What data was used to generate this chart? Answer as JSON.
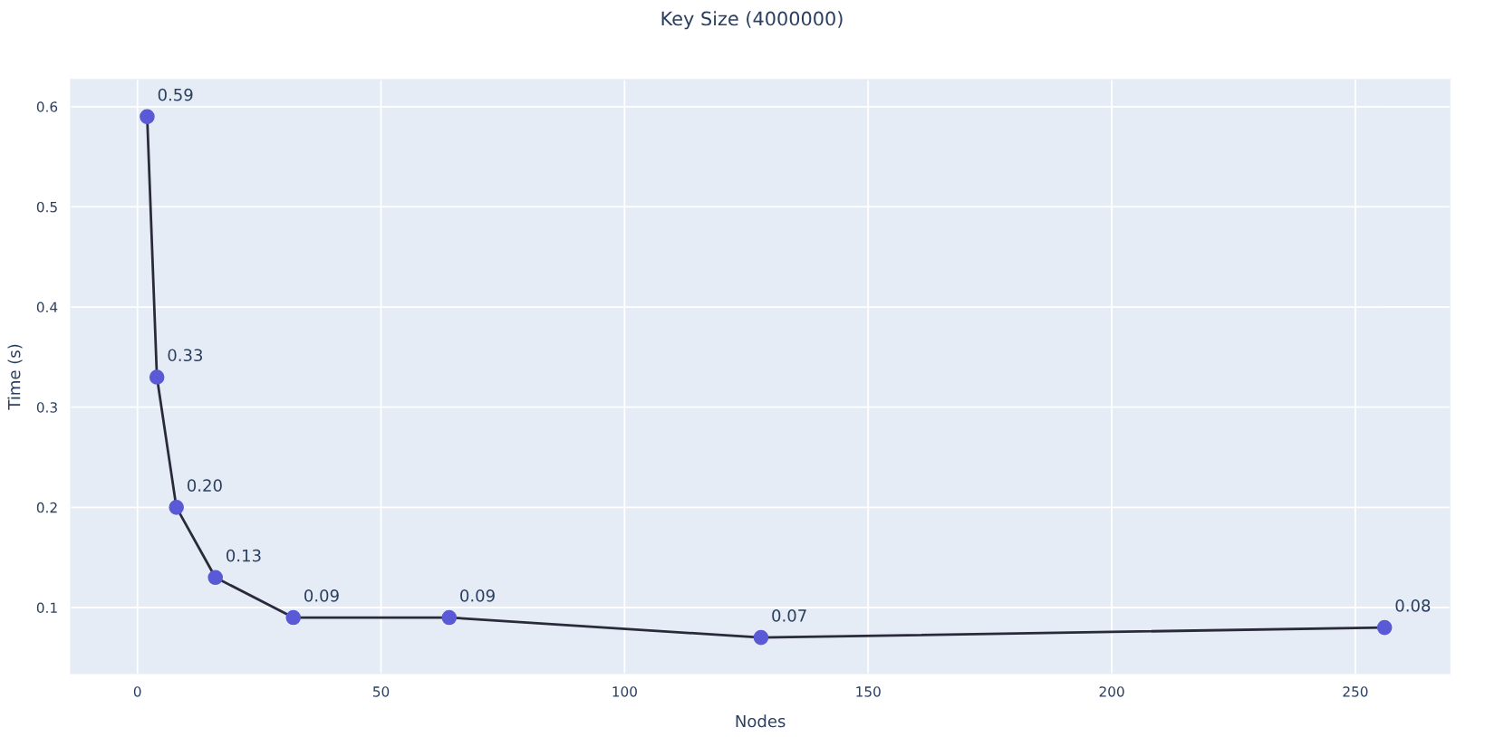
{
  "chart_data": {
    "type": "line",
    "title": "Key Size (4000000)",
    "xlabel": "Nodes",
    "ylabel": "Time (s)",
    "x": [
      2,
      4,
      8,
      16,
      32,
      64,
      128,
      256
    ],
    "series": [
      {
        "color": "#2a2a3a",
        "colors": [
          "#5a5ad6",
          "#5a5ad6",
          "#5a5ad6",
          "#5a5ad6",
          "#5a5ad6",
          "#5a5ad6",
          "#5a5ad6",
          "#5a5ad6"
        ],
        "values": [
          0.59,
          0.33,
          0.2,
          0.13,
          0.09,
          0.09,
          0.07,
          0.08
        ],
        "value_labels": [
          "0.59",
          "0.33",
          "0.20",
          "0.13",
          "0.09",
          "0.09",
          "0.07",
          "0.08"
        ]
      }
    ],
    "marker": "circle",
    "line_style": "solid",
    "grid": true,
    "legend": false,
    "xlim": [
      -13.7,
      269.4
    ],
    "ylim": [
      0.034,
      0.627
    ],
    "xticks": [
      0,
      50,
      100,
      150,
      200,
      250
    ],
    "yticks": [
      0.1,
      0.2,
      0.3,
      0.4,
      0.5,
      0.6
    ]
  }
}
